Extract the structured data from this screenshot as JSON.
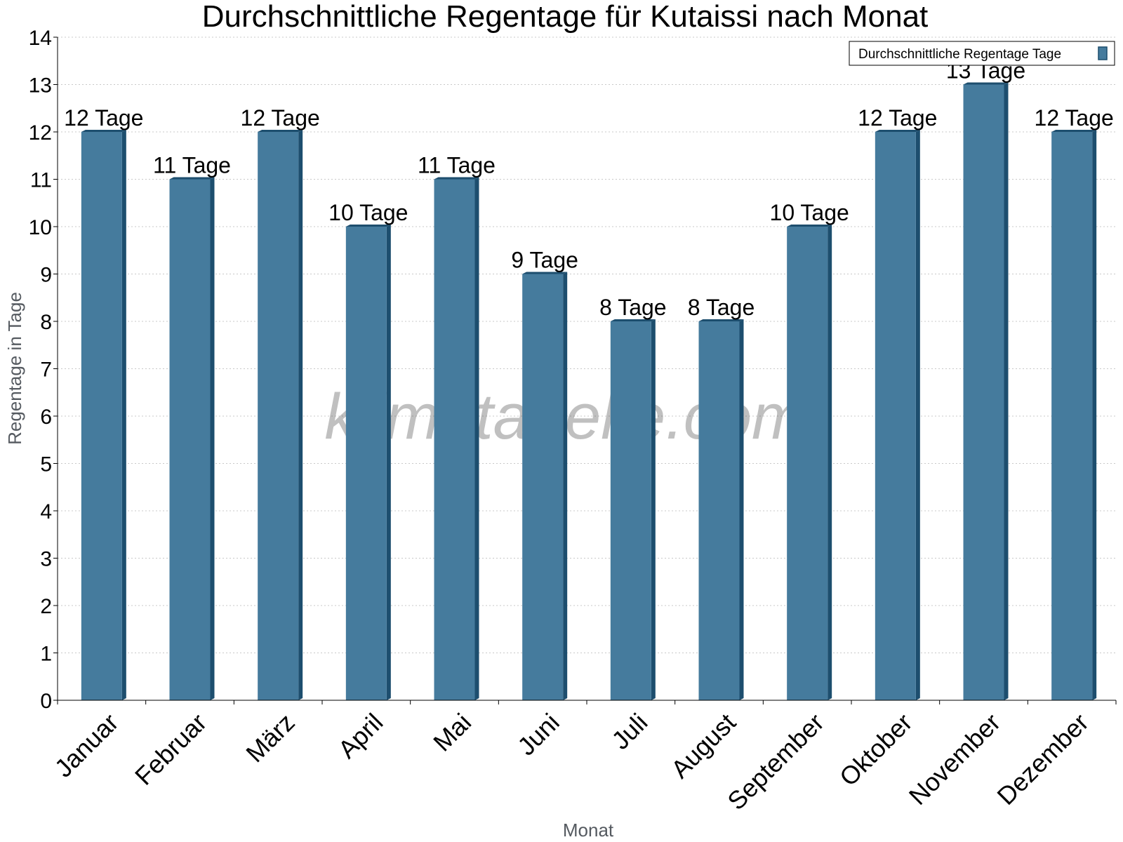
{
  "chart_data": {
    "type": "bar",
    "title": "Durchschnittliche Regentage für Kutaissi nach Monat",
    "xlabel": "Monat",
    "ylabel": "Regentage in Tage",
    "ylim": [
      0,
      14
    ],
    "yticks": [
      "0",
      "1",
      "2",
      "3",
      "4",
      "5",
      "6",
      "7",
      "8",
      "9",
      "10",
      "11",
      "12",
      "13",
      "14"
    ],
    "categories": [
      "Januar",
      "Februar",
      "März",
      "April",
      "Mai",
      "Juni",
      "Juli",
      "August",
      "September",
      "Oktober",
      "November",
      "Dezember"
    ],
    "series": [
      {
        "name": "Durchschnittliche Regentage Tage",
        "values": [
          12,
          11,
          12,
          10,
          11,
          9,
          8,
          8,
          10,
          12,
          13,
          12
        ],
        "labels": [
          "12 Tage",
          "11 Tage",
          "12 Tage",
          "10 Tage",
          "11 Tage",
          "9 Tage",
          "8 Tage",
          "8 Tage",
          "10 Tage",
          "12 Tage",
          "13 Tage",
          "12 Tage"
        ]
      }
    ],
    "grid": true,
    "legend_position": "top-right",
    "colors": {
      "bar": "#457b9d",
      "bar_dark": "#1d4e6e",
      "grid": "#c8c8c8"
    },
    "watermark": "klimatabelle.com"
  }
}
